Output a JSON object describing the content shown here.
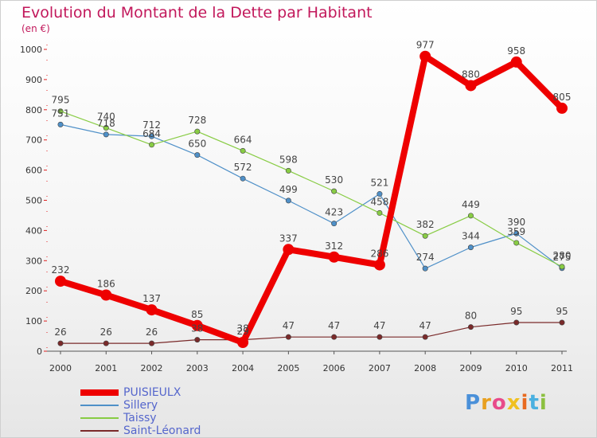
{
  "title": "Evolution du Montant de la Dette par Habitant",
  "subtitle": "(en €)",
  "chart_data": {
    "type": "line",
    "x": [
      "2000",
      "2001",
      "2002",
      "2003",
      "2004",
      "2005",
      "2006",
      "2007",
      "2008",
      "2009",
      "2010",
      "2011"
    ],
    "ylim": [
      0,
      1000
    ],
    "yticks": [
      0,
      100,
      200,
      300,
      400,
      500,
      600,
      700,
      800,
      900,
      1000
    ],
    "grid": false,
    "legend_position": "bottom-left",
    "series": [
      {
        "name": "PUISIEULX",
        "color": "#ee0000",
        "values": [
          232,
          186,
          137,
          85,
          29,
          337,
          312,
          286,
          977,
          880,
          958,
          805
        ]
      },
      {
        "name": "Sillery",
        "color": "#4f90c8",
        "values": [
          751,
          718,
          712,
          650,
          572,
          499,
          423,
          521,
          274,
          344,
          390,
          275
        ]
      },
      {
        "name": "Taissy",
        "color": "#88cc44",
        "values": [
          795,
          740,
          684,
          728,
          664,
          598,
          530,
          458,
          382,
          449,
          359,
          280
        ]
      },
      {
        "name": "Saint-Léonard",
        "color": "#7a2a2a",
        "values": [
          26,
          26,
          26,
          38,
          38,
          47,
          47,
          47,
          47,
          80,
          95,
          95
        ]
      }
    ]
  },
  "logo": {
    "text": "Proxiti",
    "colors": [
      "#4a90d9",
      "#e8a020",
      "#e84a8a",
      "#f0c020",
      "#e86a20",
      "#4ab0e0",
      "#8cc040"
    ]
  }
}
